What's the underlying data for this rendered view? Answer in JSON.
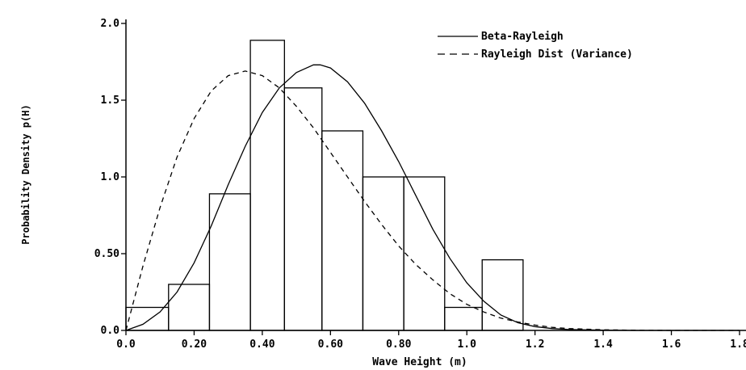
{
  "chart_data": {
    "type": "bar",
    "title": "",
    "xlabel": "Wave Height (m)",
    "ylabel": "Probability Density p(H)",
    "xlim": [
      0.0,
      1.8
    ],
    "ylim": [
      0.0,
      2.0
    ],
    "x_ticks": [
      {
        "value": 0.0,
        "label": "0.0"
      },
      {
        "value": 0.2,
        "label": "0.20"
      },
      {
        "value": 0.4,
        "label": "0.40"
      },
      {
        "value": 0.6,
        "label": "0.60"
      },
      {
        "value": 0.8,
        "label": "0.80"
      },
      {
        "value": 1.0,
        "label": "1.0"
      },
      {
        "value": 1.2,
        "label": "1.2"
      },
      {
        "value": 1.4,
        "label": "1.4"
      },
      {
        "value": 1.6,
        "label": "1.6"
      },
      {
        "value": 1.8,
        "label": "1.8"
      }
    ],
    "y_ticks": [
      {
        "value": 0.0,
        "label": "0.0"
      },
      {
        "value": 0.5,
        "label": "0.50"
      },
      {
        "value": 1.0,
        "label": "1.0"
      },
      {
        "value": 1.5,
        "label": "1.5"
      },
      {
        "value": 2.0,
        "label": "2.0"
      }
    ],
    "grid": false,
    "legend_position": "top-right",
    "histogram": {
      "bins": [
        {
          "x0": 0.0,
          "x1": 0.125,
          "value": 0.15
        },
        {
          "x0": 0.125,
          "x1": 0.245,
          "value": 0.3
        },
        {
          "x0": 0.245,
          "x1": 0.365,
          "value": 0.89
        },
        {
          "x0": 0.365,
          "x1": 0.465,
          "value": 1.89
        },
        {
          "x0": 0.465,
          "x1": 0.575,
          "value": 1.58
        },
        {
          "x0": 0.575,
          "x1": 0.695,
          "value": 1.3
        },
        {
          "x0": 0.695,
          "x1": 0.815,
          "value": 1.0
        },
        {
          "x0": 0.815,
          "x1": 0.935,
          "value": 1.0
        },
        {
          "x0": 0.935,
          "x1": 1.045,
          "value": 0.15
        },
        {
          "x0": 1.045,
          "x1": 1.165,
          "value": 0.46
        }
      ]
    },
    "series": [
      {
        "name": "Beta-Rayleigh",
        "style": "solid",
        "x": [
          0.0,
          0.05,
          0.1,
          0.15,
          0.2,
          0.25,
          0.3,
          0.35,
          0.4,
          0.45,
          0.5,
          0.55,
          0.57,
          0.6,
          0.65,
          0.7,
          0.75,
          0.8,
          0.85,
          0.9,
          0.95,
          1.0,
          1.05,
          1.1,
          1.15,
          1.2,
          1.25,
          1.3,
          1.4,
          1.5,
          1.6,
          1.7,
          1.8
        ],
        "y": [
          0.0,
          0.04,
          0.12,
          0.25,
          0.44,
          0.68,
          0.95,
          1.2,
          1.42,
          1.58,
          1.68,
          1.73,
          1.73,
          1.71,
          1.62,
          1.48,
          1.3,
          1.1,
          0.88,
          0.66,
          0.47,
          0.31,
          0.19,
          0.1,
          0.05,
          0.025,
          0.012,
          0.006,
          0.002,
          0.0,
          0.0,
          0.0,
          0.0
        ]
      },
      {
        "name": "Rayleigh Dist (Variance)",
        "style": "dashed",
        "x": [
          0.0,
          0.05,
          0.1,
          0.15,
          0.2,
          0.25,
          0.3,
          0.35,
          0.4,
          0.45,
          0.5,
          0.55,
          0.6,
          0.65,
          0.7,
          0.75,
          0.8,
          0.85,
          0.9,
          0.95,
          1.0,
          1.05,
          1.1,
          1.15,
          1.2,
          1.25,
          1.3,
          1.4,
          1.5,
          1.6,
          1.7,
          1.8
        ],
        "y": [
          0.0,
          0.42,
          0.8,
          1.13,
          1.38,
          1.56,
          1.66,
          1.69,
          1.66,
          1.58,
          1.46,
          1.32,
          1.16,
          1.0,
          0.84,
          0.69,
          0.55,
          0.43,
          0.33,
          0.24,
          0.17,
          0.12,
          0.08,
          0.055,
          0.035,
          0.02,
          0.012,
          0.004,
          0.001,
          0.0,
          0.0,
          0.0
        ]
      }
    ]
  }
}
